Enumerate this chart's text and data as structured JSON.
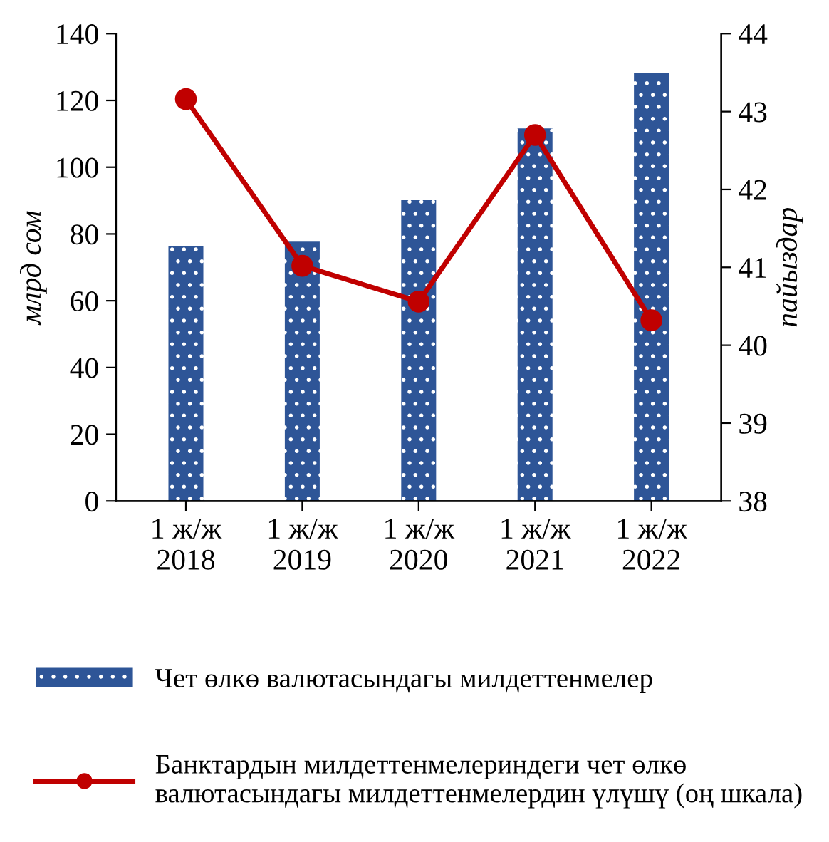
{
  "chart_data": {
    "type": "bar",
    "categories": [
      "1 ж/ж\n2018",
      "1 ж/ж\n2019",
      "1 ж/ж\n2020",
      "1 ж/ж\n2021",
      "1 ж/ж\n2022"
    ],
    "ylabel": "млрд сом",
    "y2label": "пайыздар",
    "ylim": [
      0,
      140
    ],
    "yticks": [
      0,
      20,
      40,
      60,
      80,
      100,
      120,
      140
    ],
    "y2lim": [
      38,
      44
    ],
    "y2ticks": [
      38,
      39,
      40,
      41,
      42,
      43,
      44
    ],
    "series": [
      {
        "name": "Чет өлкө валютасындагы милдеттенмелер",
        "color": "#2e5597",
        "values": [
          76.4,
          77.7,
          90.1,
          111.6,
          128.3
        ]
      },
      {
        "name": "Банктардын милдеттенмелериндеги чет өлкө\nвалютасындагы милдеттенмелердин үлүшү (оң шкала)",
        "type": "line",
        "axis": "y2",
        "color": "#c00000",
        "marker": "circle",
        "values": [
          43.16,
          41.02,
          40.56,
          42.7,
          40.32
        ]
      }
    ],
    "grid": false,
    "legend": "bottom"
  }
}
